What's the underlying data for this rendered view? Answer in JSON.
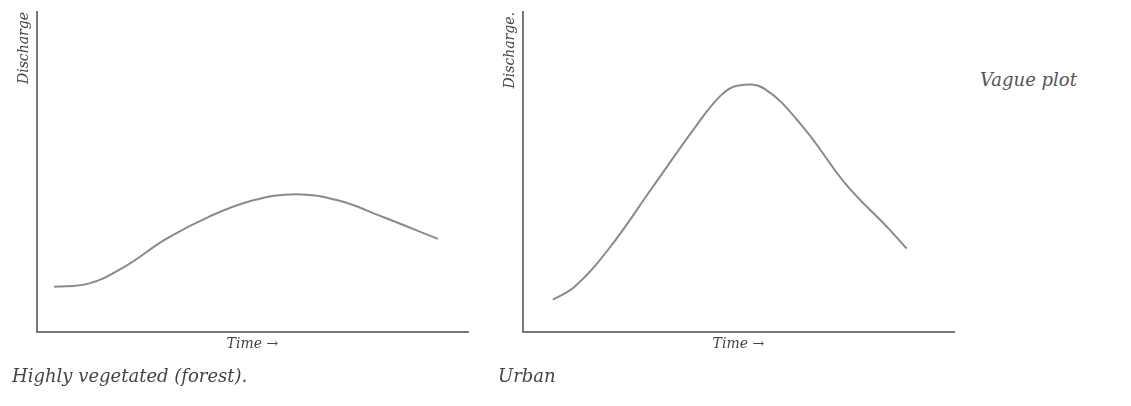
{
  "chart_data": [
    {
      "type": "line",
      "title": "Highly vegetated (forest).",
      "y_label": "Discharge",
      "x_label": "Time →",
      "x": [
        0.4,
        1.2,
        2,
        3,
        4,
        5,
        6,
        7,
        8,
        9.3
      ],
      "values": [
        1.4,
        1.5,
        2.0,
        2.9,
        3.6,
        4.1,
        4.3,
        4.1,
        3.6,
        2.9
      ],
      "color": "#8a8a8a",
      "xlim": [
        0,
        10
      ],
      "ylim": [
        0,
        10
      ],
      "grid": false,
      "tick_labels": false
    },
    {
      "type": "line",
      "title": "Urban",
      "y_label": "Discharge.",
      "x_label": "Time →",
      "x": [
        0.7,
        1.2,
        2,
        3,
        4,
        4.6,
        5,
        5.6,
        6.5,
        7.5,
        8.5,
        8.9
      ],
      "values": [
        1.0,
        1.4,
        2.6,
        4.5,
        6.4,
        7.4,
        7.7,
        7.6,
        6.4,
        4.6,
        3.2,
        2.6
      ],
      "color": "#8a8a8a",
      "xlim": [
        0,
        10
      ],
      "ylim": [
        0,
        10
      ],
      "grid": false,
      "tick_labels": false,
      "annotations": [
        "Vague plot"
      ]
    }
  ]
}
